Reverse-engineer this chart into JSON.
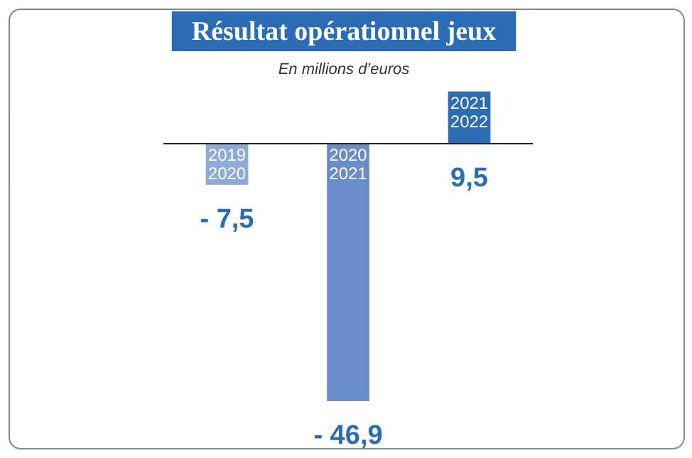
{
  "chart_data": {
    "type": "bar",
    "title": "Résultat opérationnel jeux",
    "subtitle": "En millions d’euros",
    "categories": [
      "2019 2020",
      "2020 2021",
      "2021 2022"
    ],
    "values": [
      -7.5,
      -46.9,
      9.5
    ],
    "colors": [
      "#8eaad8",
      "#6a8cc8",
      "#2b6cb4"
    ],
    "value_labels": [
      "- 7,5",
      "- 46,9",
      "9,5"
    ]
  }
}
